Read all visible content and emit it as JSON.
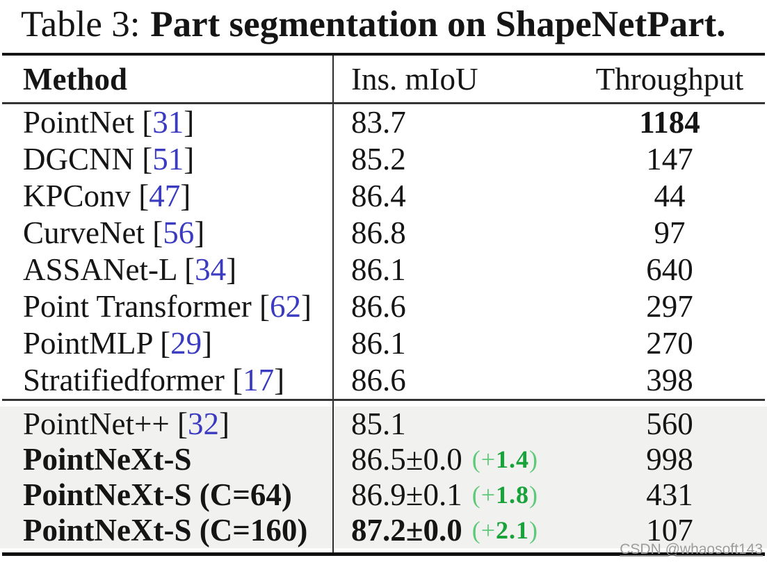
{
  "title": {
    "label": "Table 3:",
    "text_bold": "Part segmentation on ShapeNetPart."
  },
  "header": {
    "method": "Method",
    "miou": "Ins. mIoU",
    "throughput": "Throughput"
  },
  "sections": [
    {
      "shaded": false,
      "rows": [
        {
          "method": "PointNet",
          "cite": "31",
          "miou": "83.7",
          "tp": "1184",
          "tp_bold": true
        },
        {
          "method": "DGCNN",
          "cite": "51",
          "miou": "85.2",
          "tp": "147"
        },
        {
          "method": "KPConv",
          "cite": "47",
          "miou": "86.4",
          "tp": "44"
        },
        {
          "method": "CurveNet",
          "cite": "56",
          "miou": "86.8",
          "tp": "97"
        },
        {
          "method": "ASSANet-L",
          "cite": "34",
          "miou": "86.1",
          "tp": "640"
        },
        {
          "method": "Point Transformer",
          "cite": "62",
          "miou": "86.6",
          "tp": "297"
        },
        {
          "method": "PointMLP",
          "cite": "29",
          "miou": "86.1",
          "tp": "270"
        },
        {
          "method": "Stratifiedformer",
          "cite": "17",
          "miou": "86.6",
          "tp": "398"
        }
      ]
    },
    {
      "shaded": true,
      "rows": [
        {
          "method": "PointNet++",
          "cite": "32",
          "miou": "85.1",
          "tp": "560"
        },
        {
          "method": "PointNeXt-S",
          "method_bold": true,
          "miou": "86.5±0.0",
          "delta": "1.4",
          "tp": "998"
        },
        {
          "method": "PointNeXt-S (C=64)",
          "method_bold": true,
          "miou": "86.9±0.1",
          "delta": "1.8",
          "tp": "431"
        },
        {
          "method": "PointNeXt-S (C=160)",
          "method_bold": true,
          "miou": "87.2±0.0",
          "miou_bold": true,
          "delta": "2.1",
          "tp": "107"
        }
      ]
    }
  ],
  "delta_open": "(+",
  "delta_close": ")",
  "watermark": "CSDN @whaosoft143",
  "colors": {
    "citation_blue": "#3a3bc0",
    "delta_light_green": "#5fc97a",
    "delta_dark_green": "#17a23a",
    "shaded_background": "#f1f1ef",
    "divider": "#2c2c2c",
    "watermark_gray": "#9c9c9c"
  }
}
